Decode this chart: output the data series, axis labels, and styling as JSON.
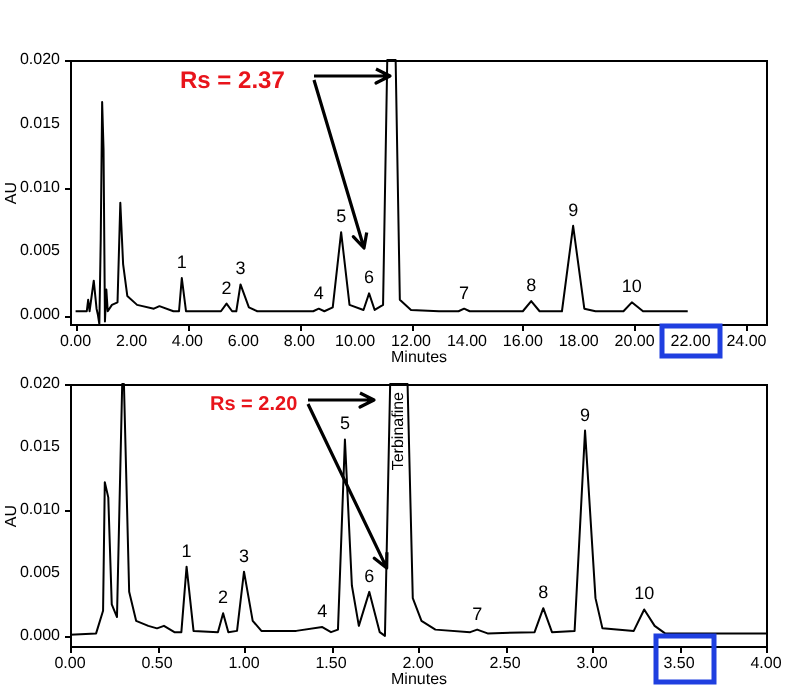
{
  "chart_data": [
    {
      "type": "line",
      "xlabel": "Minutes",
      "ylabel": "AU",
      "x": [
        0.0,
        0.4,
        0.45,
        0.5,
        0.65,
        0.75,
        0.8,
        0.85,
        0.9,
        0.95,
        1.0,
        1.05,
        1.1,
        1.15,
        1.3,
        1.5,
        1.6,
        1.7,
        1.85,
        2.2,
        2.8,
        3.0,
        3.5,
        3.7,
        3.8,
        3.95,
        5.2,
        5.4,
        5.6,
        5.75,
        5.9,
        6.2,
        6.5,
        8.5,
        8.7,
        8.9,
        9.2,
        9.5,
        9.8,
        10.3,
        10.5,
        10.7,
        11.0,
        11.15,
        11.45,
        11.6,
        12.0,
        13.0,
        13.7,
        13.9,
        14.1,
        16.0,
        16.3,
        16.6,
        17.4,
        17.8,
        18.2,
        18.6,
        19.6,
        19.9,
        20.3,
        21.9
      ],
      "series": [
        {
          "color": "#000000",
          "values": [
            0.0003,
            0.0003,
            0.0012,
            0.0003,
            0.0027,
            0.0005,
            0.0,
            -0.0007,
            0.006,
            0.0167,
            0.013,
            -0.0005,
            0.002,
            0.0003,
            0.0008,
            0.001,
            0.0088,
            0.004,
            0.0015,
            0.0008,
            0.0005,
            0.0007,
            0.0003,
            0.0003,
            0.0029,
            0.0003,
            0.0003,
            0.0009,
            0.0003,
            0.0003,
            0.0024,
            0.0006,
            0.0003,
            0.0003,
            0.0005,
            0.0003,
            0.0006,
            0.0065,
            0.0008,
            0.0004,
            0.0017,
            0.0004,
            0.0008,
            0.02,
            0.02,
            0.0012,
            0.0004,
            0.0003,
            0.0003,
            0.0005,
            0.0003,
            0.0003,
            0.0011,
            0.0003,
            0.0003,
            0.007,
            0.0005,
            0.0003,
            0.0003,
            0.001,
            0.0003,
            0.0003
          ]
        }
      ],
      "xlim": [
        -0.2,
        24.7
      ],
      "ylim": [
        -0.0007,
        0.02
      ],
      "xticks": [
        {
          "value": 0,
          "label": "0.00"
        },
        {
          "value": 2,
          "label": "2.00"
        },
        {
          "value": 4,
          "label": "4.00"
        },
        {
          "value": 6,
          "label": "6.00"
        },
        {
          "value": 8,
          "label": "8.00"
        },
        {
          "value": 10,
          "label": "10.00"
        },
        {
          "value": 12,
          "label": "12.00"
        },
        {
          "value": 14,
          "label": "14.00"
        },
        {
          "value": 16,
          "label": "16.00"
        },
        {
          "value": 18,
          "label": "18.00"
        },
        {
          "value": 20,
          "label": "20.00"
        },
        {
          "value": 22,
          "label": "22.00"
        },
        {
          "value": 24,
          "label": "24.00"
        }
      ],
      "yticks": [
        {
          "value": 0,
          "label": "0.000"
        },
        {
          "value": 0.005,
          "label": "0.005"
        },
        {
          "value": 0.01,
          "label": "0.010"
        },
        {
          "value": 0.015,
          "label": "0.015"
        },
        {
          "value": 0.02,
          "label": "0.020"
        }
      ],
      "grid": false,
      "legend": false,
      "marker": "none",
      "line_style": "solid",
      "annotations": [
        "Rs = 2.37",
        {
          "text": "1",
          "x": 3.8,
          "y": 0.0029
        },
        {
          "text": "2",
          "x": 5.4,
          "y": 0.0009
        },
        {
          "text": "3",
          "x": 5.9,
          "y": 0.0024
        },
        {
          "text": "4",
          "x": 8.7,
          "y": 0.0005
        },
        {
          "text": "5",
          "x": 9.5,
          "y": 0.0065
        },
        {
          "text": "6",
          "x": 10.5,
          "y": 0.0017
        },
        {
          "text": "7",
          "x": 13.9,
          "y": 0.0005
        },
        {
          "text": "8",
          "x": 16.3,
          "y": 0.0011
        },
        {
          "text": "9",
          "x": 17.8,
          "y": 0.007
        },
        {
          "text": "10",
          "x": 19.9,
          "y": 0.001
        }
      ]
    },
    {
      "type": "line",
      "xlabel": "Minutes",
      "ylabel": "AU",
      "x": [
        0.0,
        0.15,
        0.19,
        0.2,
        0.22,
        0.24,
        0.27,
        0.3,
        0.31,
        0.34,
        0.38,
        0.45,
        0.5,
        0.54,
        0.6,
        0.64,
        0.67,
        0.71,
        0.85,
        0.88,
        0.91,
        0.96,
        1.0,
        1.05,
        1.1,
        1.3,
        1.45,
        1.5,
        1.54,
        1.58,
        1.62,
        1.66,
        1.72,
        1.78,
        1.81,
        1.84,
        1.94,
        1.97,
        2.02,
        2.1,
        2.3,
        2.34,
        2.4,
        2.67,
        2.72,
        2.77,
        2.9,
        2.96,
        3.02,
        3.06,
        3.24,
        3.3,
        3.36,
        3.42,
        4.0
      ],
      "series": [
        {
          "color": "#000000",
          "values": [
            0.0001,
            0.0002,
            0.002,
            0.0122,
            0.011,
            0.0025,
            0.0015,
            0.02,
            0.02,
            0.0035,
            0.0012,
            0.0008,
            0.0006,
            0.0008,
            0.0003,
            0.0003,
            0.0055,
            0.0004,
            0.0003,
            0.0018,
            0.0003,
            0.0004,
            0.0051,
            0.0012,
            0.0004,
            0.0004,
            0.0007,
            0.0003,
            0.0005,
            0.0156,
            0.004,
            0.0008,
            0.0035,
            0.0003,
            0.0,
            0.02,
            0.02,
            0.003,
            0.0012,
            0.0005,
            0.0003,
            0.0005,
            0.0002,
            0.0003,
            0.0022,
            0.0003,
            0.0004,
            0.0163,
            0.003,
            0.0006,
            0.0004,
            0.0021,
            0.0008,
            0.0002,
            0.0002
          ]
        }
      ],
      "xlim": [
        0,
        4
      ],
      "ylim": [
        -0.0008,
        0.02
      ],
      "xticks": [
        {
          "value": 0,
          "label": "0.00"
        },
        {
          "value": 0.5,
          "label": "0.50"
        },
        {
          "value": 1,
          "label": "1.00"
        },
        {
          "value": 1.5,
          "label": "1.50"
        },
        {
          "value": 2,
          "label": "2.00"
        },
        {
          "value": 2.5,
          "label": "2.50"
        },
        {
          "value": 3,
          "label": "3.00"
        },
        {
          "value": 3.5,
          "label": "3.50"
        },
        {
          "value": 4,
          "label": "4.00"
        }
      ],
      "yticks": [
        {
          "value": 0,
          "label": "0.000"
        },
        {
          "value": 0.005,
          "label": "0.005"
        },
        {
          "value": 0.01,
          "label": "0.010"
        },
        {
          "value": 0.015,
          "label": "0.015"
        },
        {
          "value": 0.02,
          "label": "0.020"
        }
      ],
      "grid": false,
      "legend": false,
      "marker": "none",
      "line_style": "solid",
      "annotations": [
        {
          "text": "Rs = 2.20",
          "x": 1.82,
          "y": 0.0054
        },
        {
          "text": "1",
          "x": 0.67,
          "y": 0.0055
        },
        {
          "text": "2",
          "x": 0.88,
          "y": 0.0018
        },
        {
          "text": "3",
          "x": 1.0,
          "y": 0.0051
        },
        {
          "text": "4",
          "x": 1.45,
          "y": 0.0007
        },
        {
          "text": "5",
          "x": 1.58,
          "y": 0.0156
        },
        {
          "text": "6",
          "x": 1.72,
          "y": 0.0035
        },
        {
          "text": "Terbinafine",
          "x": 1.89,
          "y": 0.02
        },
        {
          "text": "7",
          "x": 2.34,
          "y": 0.0005
        },
        {
          "text": "8",
          "x": 2.72,
          "y": 0.0022
        },
        {
          "text": "9",
          "x": 2.96,
          "y": 0.0163
        },
        {
          "text": "10",
          "x": 3.3,
          "y": 0.0021
        }
      ]
    }
  ]
}
